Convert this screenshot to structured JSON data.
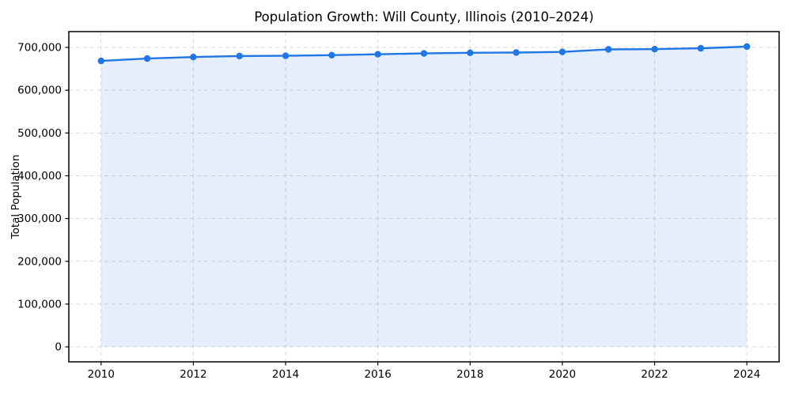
{
  "chart_data": {
    "type": "line",
    "title": "Population Growth: Will County, Illinois (2010–2024)",
    "xlabel": "",
    "ylabel": "Total Population",
    "x": [
      2010,
      2011,
      2012,
      2013,
      2014,
      2015,
      2016,
      2017,
      2018,
      2019,
      2020,
      2021,
      2022,
      2023,
      2024
    ],
    "series": [
      {
        "name": "Total Population",
        "values": [
          668500,
          674000,
          677500,
          680000,
          680500,
          682000,
          684000,
          686000,
          687500,
          688000,
          689500,
          695500,
          696000,
          698000,
          702000
        ]
      }
    ],
    "x_ticks": [
      2010,
      2012,
      2014,
      2016,
      2018,
      2020,
      2022,
      2024
    ],
    "y_ticks": [
      0,
      100000,
      200000,
      300000,
      400000,
      500000,
      600000,
      700000
    ],
    "xlim": [
      2009.3,
      2024.7
    ],
    "ylim": [
      -35000,
      737000
    ],
    "grid": true,
    "legend_position": "none",
    "colors": {
      "line": "#2176e6",
      "marker": "#2176e6",
      "fill": "#2176e6",
      "fill_opacity": 0.12,
      "grid": "#d9d9d9",
      "spine": "#000000",
      "tick_label": "#000000",
      "background": "#ffffff"
    },
    "style": {
      "line_width": 2.4,
      "marker_radius": 4.2,
      "grid_dash": "5,4",
      "area_baseline": 0
    }
  }
}
